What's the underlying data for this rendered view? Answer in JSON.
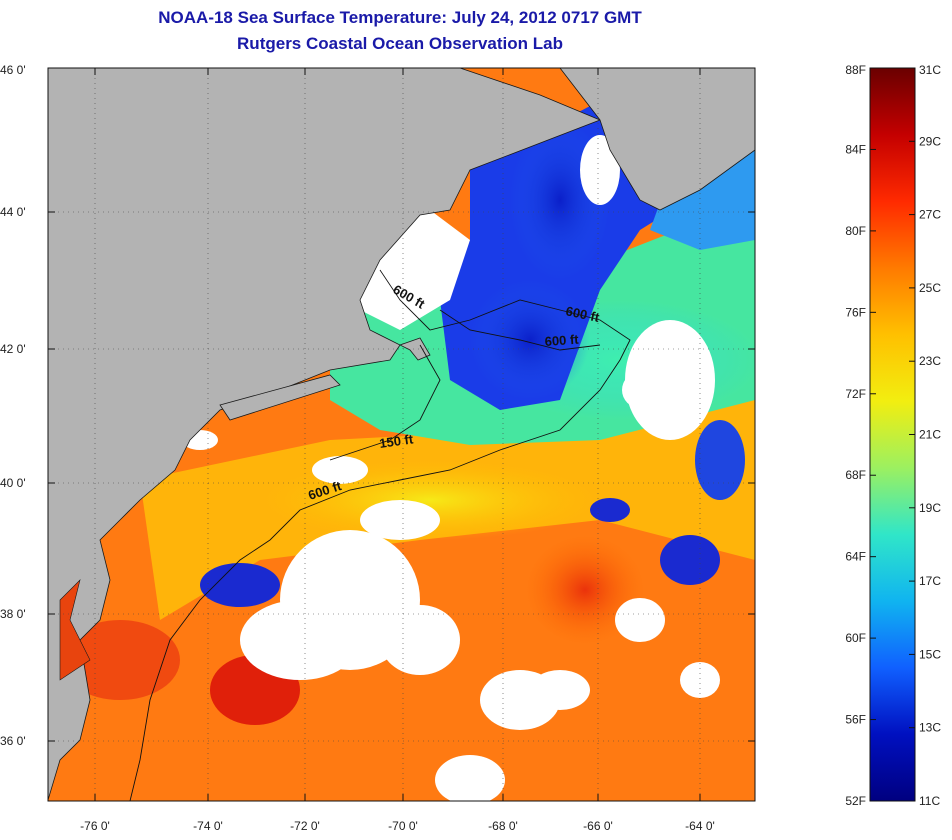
{
  "title": {
    "line1": "NOAA-18 Sea Surface Temperature:  July 24, 2012 0717 GMT",
    "line2": "Rutgers Coastal Ocean Observation Lab"
  },
  "axes": {
    "lon_labels": [
      "-76 0'",
      "-74 0'",
      "-72 0'",
      "-70 0'",
      "-68 0'",
      "-66 0'",
      "-64 0'"
    ],
    "lat_labels": [
      "46 0'",
      "44 0'",
      "42 0'",
      "40 0'",
      "38 0'",
      "36 0'"
    ]
  },
  "contours": [
    "600 ft",
    "600 ft",
    "600 ft",
    "150 ft",
    "600 ft"
  ],
  "colorbar": {
    "fahrenheit": [
      "88F",
      "84F",
      "80F",
      "76F",
      "72F",
      "68F",
      "64F",
      "60F",
      "56F",
      "52F"
    ],
    "celsius": [
      "31C",
      "29C",
      "27C",
      "25C",
      "23C",
      "21C",
      "19C",
      "17C",
      "15C",
      "13C",
      "11C"
    ],
    "colors": [
      "#6a0000",
      "#c40000",
      "#ff2a00",
      "#ff7a00",
      "#ffc000",
      "#f2ee10",
      "#9cf060",
      "#30e6c8",
      "#10b4f0",
      "#1060ff",
      "#0010c0",
      "#000080"
    ]
  },
  "map_colors": {
    "land": "#b3b3b3",
    "cloud": "#ffffff",
    "coastline": "#1a1a1a"
  }
}
